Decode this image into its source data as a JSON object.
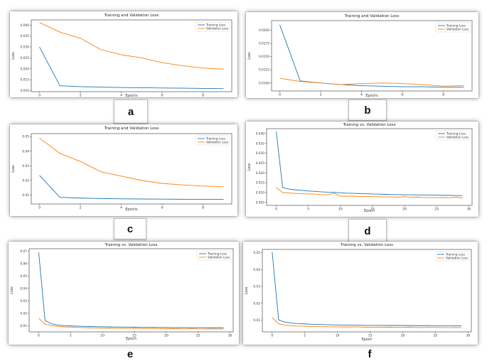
{
  "colors": {
    "training": "#1f77b4",
    "validation": "#ff7f0e"
  },
  "chart_data": [
    {
      "panel": "a",
      "type": "line",
      "title": "Training and Validation Loss",
      "xlabel": "Epochs",
      "ylabel": "Loss",
      "xlim": [
        -0.4,
        9.4
      ],
      "ylim": [
        0.0095,
        0.0424
      ],
      "xticks": [
        0,
        2,
        4,
        6,
        8
      ],
      "yticks": [
        0.01,
        0.015,
        0.02,
        0.025,
        0.03,
        0.035,
        0.04
      ],
      "ytick_labels": [
        "0.010",
        "0.015",
        "0.020",
        "0.025",
        "0.030",
        "0.035",
        "0.040"
      ],
      "legend_position": "top-right",
      "series": [
        {
          "name": "Training Loss",
          "color": "#1f77b4",
          "x": [
            0,
            1,
            2,
            3,
            4,
            5,
            6,
            7,
            8,
            9
          ],
          "values": [
            0.03,
            0.0122,
            0.0118,
            0.0116,
            0.0114,
            0.0113,
            0.0112,
            0.0111,
            0.011,
            0.0109
          ]
        },
        {
          "name": "Validation Loss",
          "color": "#ff7f0e",
          "x": [
            0,
            1,
            2,
            3,
            4,
            5,
            6,
            7,
            8,
            9
          ],
          "values": [
            0.0412,
            0.0368,
            0.034,
            0.0288,
            0.0264,
            0.025,
            0.0228,
            0.0214,
            0.0203,
            0.0198
          ]
        }
      ]
    },
    {
      "panel": "b",
      "type": "line",
      "title": "Training and Validation Loss",
      "xlabel": "Epochs",
      "ylabel": "Loss",
      "xlim": [
        -0.4,
        9.4
      ],
      "ylim": [
        0.0085,
        0.0218
      ],
      "xticks": [
        0,
        2,
        4,
        6,
        8
      ],
      "yticks": [
        0.01,
        0.0125,
        0.015,
        0.0175,
        0.02
      ],
      "ytick_labels": [
        "0.0100",
        "0.0125",
        "0.0150",
        "0.0175",
        "0.0200"
      ],
      "legend_position": "top-right",
      "series": [
        {
          "name": "Training Loss",
          "color": "#1f77b4",
          "x": [
            0,
            1,
            2,
            3,
            4,
            5,
            6,
            7,
            8,
            9
          ],
          "values": [
            0.021,
            0.0104,
            0.01,
            0.0097,
            0.0095,
            0.0094,
            0.0093,
            0.0093,
            0.0092,
            0.0092
          ]
        },
        {
          "name": "Validation Loss",
          "color": "#ff7f0e",
          "x": [
            0,
            1,
            2,
            3,
            4,
            5,
            6,
            7,
            8,
            9
          ],
          "values": [
            0.0109,
            0.0103,
            0.01,
            0.0097,
            0.0099,
            0.01,
            0.0099,
            0.0097,
            0.0094,
            0.0095
          ]
        }
      ]
    },
    {
      "panel": "c",
      "type": "line",
      "title": "Training and Validation Loss",
      "xlabel": "Epochs",
      "ylabel": "Loss",
      "xlim": [
        -0.4,
        9.4
      ],
      "ylim": [
        0.004,
        0.052
      ],
      "xticks": [
        0,
        2,
        4,
        6,
        8
      ],
      "yticks": [
        0.01,
        0.02,
        0.03,
        0.04,
        0.05
      ],
      "ytick_labels": [
        "0.01",
        "0.02",
        "0.03",
        "0.04",
        "0.05"
      ],
      "legend_position": "top-right",
      "series": [
        {
          "name": "Training Loss",
          "color": "#1f77b4",
          "x": [
            0,
            1,
            2,
            3,
            4,
            5,
            6,
            7,
            8,
            9
          ],
          "values": [
            0.0235,
            0.0085,
            0.008,
            0.0077,
            0.0075,
            0.0074,
            0.0073,
            0.0072,
            0.0072,
            0.0072
          ]
        },
        {
          "name": "Validation Loss",
          "color": "#ff7f0e",
          "x": [
            0,
            1,
            2,
            3,
            4,
            5,
            6,
            7,
            8,
            9
          ],
          "values": [
            0.049,
            0.0385,
            0.033,
            0.026,
            0.023,
            0.02,
            0.018,
            0.017,
            0.0162,
            0.0158
          ]
        }
      ]
    },
    {
      "panel": "d",
      "type": "line",
      "title": "Training vs. Validation Loss",
      "xlabel": "Epoch",
      "ylabel": "Loss",
      "xlim": [
        -1.5,
        30.5
      ],
      "ylim": [
        0.0035,
        0.0425
      ],
      "xticks": [
        0,
        5,
        10,
        15,
        20,
        25,
        30
      ],
      "yticks": [
        0.005,
        0.01,
        0.015,
        0.02,
        0.025,
        0.03,
        0.035,
        0.04
      ],
      "ytick_labels": [
        "0.005",
        "0.010",
        "0.015",
        "0.020",
        "0.025",
        "0.030",
        "0.035",
        "0.040"
      ],
      "legend_position": "top-right",
      "series": [
        {
          "name": "Training Loss",
          "color": "#1f77b4",
          "x": [
            0,
            1,
            2,
            3,
            4,
            5,
            6,
            7,
            8,
            9,
            10,
            11,
            12,
            13,
            14,
            15,
            16,
            17,
            18,
            19,
            20,
            21,
            22,
            23,
            24,
            25,
            26,
            27,
            28,
            29
          ],
          "values": [
            0.041,
            0.0125,
            0.0118,
            0.0114,
            0.0111,
            0.0108,
            0.0106,
            0.0104,
            0.0102,
            0.0101,
            0.0099,
            0.0097,
            0.0096,
            0.0095,
            0.0094,
            0.0093,
            0.0092,
            0.0091,
            0.009,
            0.009,
            0.0089,
            0.0089,
            0.0088,
            0.0088,
            0.0087,
            0.0087,
            0.0086,
            0.0086,
            0.0085,
            0.0085
          ]
        },
        {
          "name": "Validation Loss",
          "color": "#ff7f0e",
          "x": [
            0,
            1,
            2,
            3,
            4,
            5,
            6,
            7,
            8,
            9,
            10,
            11,
            12,
            13,
            14,
            15,
            16,
            17,
            18,
            19,
            20,
            21,
            22,
            23,
            24,
            25,
            26,
            27,
            28,
            29
          ],
          "values": [
            0.0125,
            0.01,
            0.0098,
            0.0096,
            0.0094,
            0.0093,
            0.0092,
            0.009,
            0.0089,
            0.0097,
            0.0082,
            0.0081,
            0.0082,
            0.008,
            0.008,
            0.008,
            0.0079,
            0.0078,
            0.0078,
            0.0077,
            0.0079,
            0.0076,
            0.0077,
            0.0075,
            0.0075,
            0.0074,
            0.0075,
            0.0073,
            0.0077,
            0.0072
          ]
        }
      ]
    },
    {
      "panel": "e",
      "type": "line",
      "title": "Training vs. Validation Loss",
      "xlabel": "Epoch",
      "ylabel": "Loss",
      "xlim": [
        -1.5,
        30.5
      ],
      "ylim": [
        0.005,
        0.072
      ],
      "xticks": [
        0,
        5,
        10,
        15,
        20,
        25,
        30
      ],
      "yticks": [
        0.01,
        0.02,
        0.03,
        0.04,
        0.05,
        0.06,
        0.07
      ],
      "ytick_labels": [
        "0.01",
        "0.02",
        "0.03",
        "0.04",
        "0.05",
        "0.06",
        "0.07"
      ],
      "legend_position": "top-right",
      "series": [
        {
          "name": "Training Loss",
          "color": "#1f77b4",
          "x": [
            0,
            1,
            2,
            3,
            4,
            5,
            6,
            7,
            8,
            9,
            10,
            11,
            12,
            13,
            14,
            15,
            16,
            17,
            18,
            19,
            20,
            21,
            22,
            23,
            24,
            25,
            26,
            27,
            28,
            29
          ],
          "values": [
            0.069,
            0.014,
            0.0115,
            0.0105,
            0.01,
            0.0098,
            0.0096,
            0.0094,
            0.0093,
            0.0092,
            0.0091,
            0.009,
            0.0089,
            0.0089,
            0.0088,
            0.0088,
            0.0087,
            0.0087,
            0.0086,
            0.0086,
            0.0086,
            0.0085,
            0.0085,
            0.0085,
            0.0084,
            0.0084,
            0.0084,
            0.0083,
            0.0083,
            0.0083
          ]
        },
        {
          "name": "Validation Loss",
          "color": "#ff7f0e",
          "x": [
            0,
            1,
            2,
            3,
            4,
            5,
            6,
            7,
            8,
            9,
            10,
            11,
            12,
            13,
            14,
            15,
            16,
            17,
            18,
            19,
            20,
            21,
            22,
            23,
            24,
            25,
            26,
            27,
            28,
            29
          ],
          "values": [
            0.016,
            0.0112,
            0.01,
            0.0094,
            0.009,
            0.0088,
            0.0086,
            0.0084,
            0.0083,
            0.0082,
            0.008,
            0.008,
            0.0079,
            0.0079,
            0.0078,
            0.008,
            0.0077,
            0.0077,
            0.0078,
            0.0076,
            0.0075,
            0.0076,
            0.0075,
            0.0074,
            0.0077,
            0.0074,
            0.0073,
            0.0074,
            0.0073,
            0.0073
          ]
        }
      ]
    },
    {
      "panel": "f",
      "type": "line",
      "title": "Training vs. Validation Loss",
      "xlabel": "Epoch",
      "ylabel": "Loss",
      "xlim": [
        -1.5,
        30.5
      ],
      "ylim": [
        0.003,
        0.052
      ],
      "xticks": [
        0,
        5,
        10,
        15,
        20,
        25,
        30
      ],
      "yticks": [
        0.01,
        0.02,
        0.03,
        0.04,
        0.05
      ],
      "ytick_labels": [
        "0.01",
        "0.02",
        "0.03",
        "0.04",
        "0.05"
      ],
      "legend_position": "top-right",
      "series": [
        {
          "name": "Training Loss",
          "color": "#1f77b4",
          "x": [
            0,
            1,
            2,
            3,
            4,
            5,
            6,
            7,
            8,
            9,
            10,
            11,
            12,
            13,
            14,
            15,
            16,
            17,
            18,
            19,
            20,
            21,
            22,
            23,
            24,
            25,
            26,
            27,
            28,
            29
          ],
          "values": [
            0.0505,
            0.01,
            0.0088,
            0.0082,
            0.0079,
            0.0077,
            0.0075,
            0.0074,
            0.0073,
            0.0072,
            0.0071,
            0.0071,
            0.007,
            0.007,
            0.0069,
            0.0069,
            0.0069,
            0.0068,
            0.0068,
            0.0068,
            0.0068,
            0.0067,
            0.0067,
            0.0067,
            0.0067,
            0.0066,
            0.0066,
            0.0066,
            0.0066,
            0.0066
          ]
        },
        {
          "name": "Validation Loss",
          "color": "#ff7f0e",
          "x": [
            0,
            1,
            2,
            3,
            4,
            5,
            6,
            7,
            8,
            9,
            10,
            11,
            12,
            13,
            14,
            15,
            16,
            17,
            18,
            19,
            20,
            21,
            22,
            23,
            24,
            25,
            26,
            27,
            28,
            29
          ],
          "values": [
            0.0115,
            0.0078,
            0.007,
            0.0066,
            0.0064,
            0.0063,
            0.0062,
            0.0061,
            0.0061,
            0.006,
            0.006,
            0.0059,
            0.0059,
            0.006,
            0.0058,
            0.0058,
            0.0058,
            0.0057,
            0.0058,
            0.0057,
            0.0057,
            0.0058,
            0.0056,
            0.0056,
            0.0057,
            0.0056,
            0.0056,
            0.0055,
            0.0056,
            0.0055
          ]
        }
      ]
    }
  ]
}
